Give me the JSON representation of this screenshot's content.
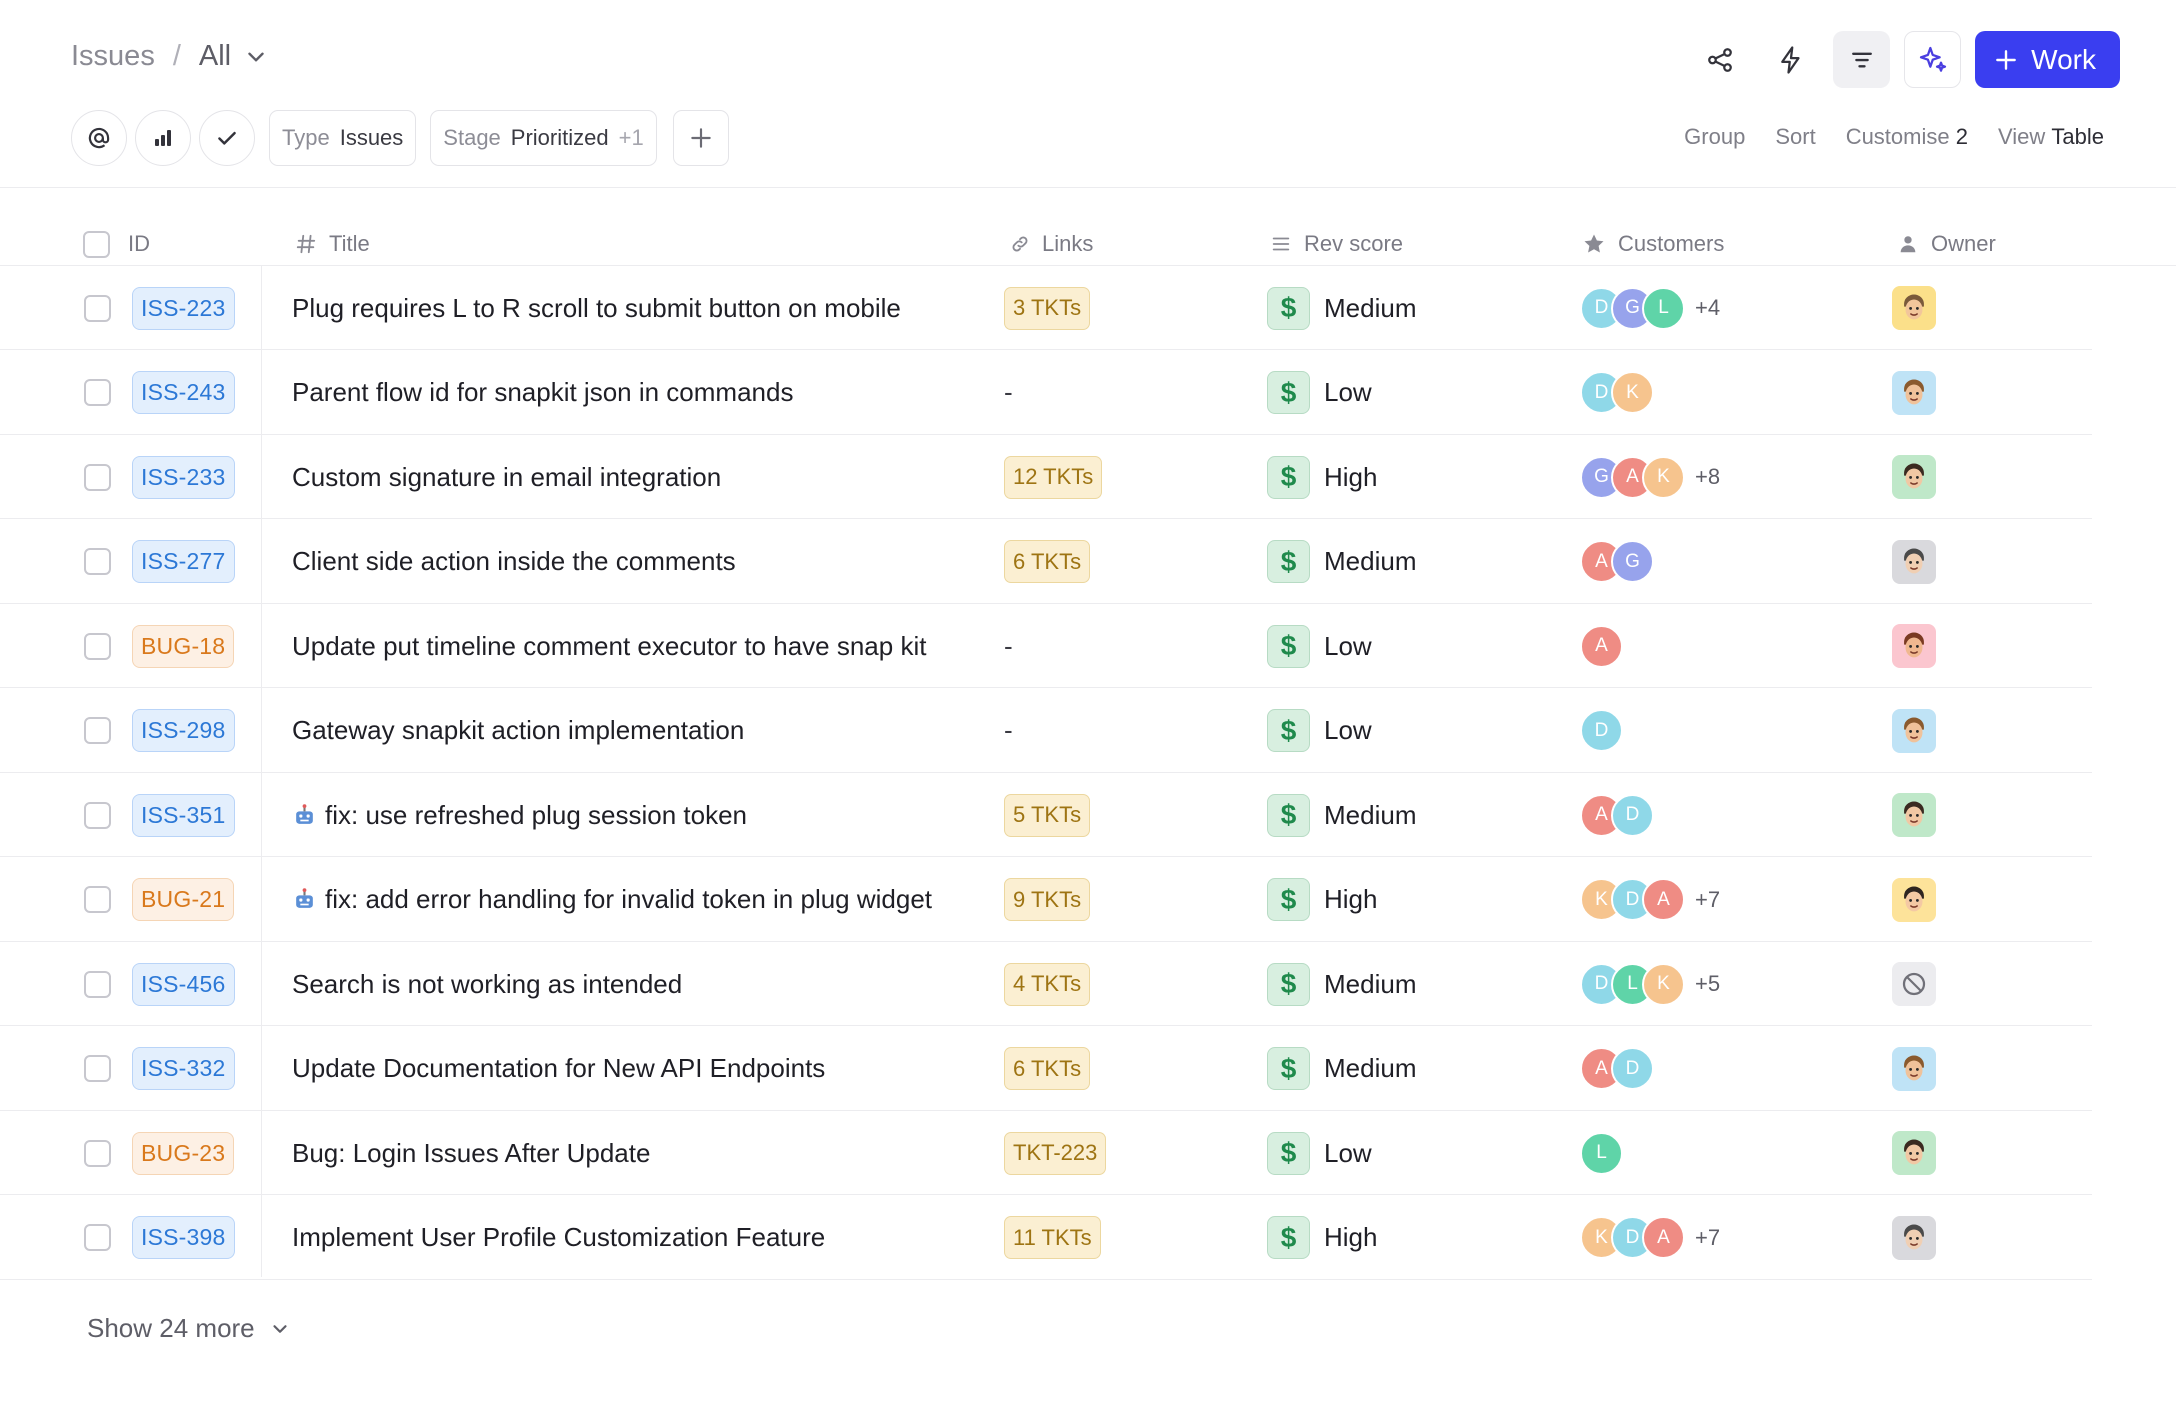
{
  "breadcrumb": {
    "root": "Issues",
    "separator": "/",
    "current": "All"
  },
  "toolbar": {
    "primary_label": "Work",
    "plus": "+"
  },
  "filters": {
    "type_key": "Type",
    "type_value": "Issues",
    "stage_key": "Stage",
    "stage_value": "Prioritized",
    "stage_extra": "+1"
  },
  "view_options": {
    "group": "Group",
    "sort": "Sort",
    "customise": "Customise",
    "customise_count": "2",
    "view": "View",
    "view_value": "Table"
  },
  "columns": {
    "id": "ID",
    "title": "Title",
    "links": "Links",
    "rev_score": "Rev score",
    "customers": "Customers",
    "owner": "Owner"
  },
  "rows": [
    {
      "id": "ISS-223",
      "kind": "iss",
      "title": "Plug requires L to R scroll to submit button on mobile",
      "title_icon": "",
      "links": "3 TKTs",
      "score": "Medium",
      "customers": [
        "D",
        "G",
        "L"
      ],
      "more": "+4",
      "owner": "avatar-hat"
    },
    {
      "id": "ISS-243",
      "kind": "iss",
      "title": "Parent flow id for snapkit json in commands",
      "title_icon": "",
      "links": "-",
      "score": "Low",
      "customers": [
        "D",
        "K"
      ],
      "more": "",
      "owner": "avatar-woman"
    },
    {
      "id": "ISS-233",
      "kind": "iss",
      "title": "Custom signature in email integration",
      "title_icon": "",
      "links": "12 TKTs",
      "score": "High",
      "customers": [
        "G",
        "A",
        "K"
      ],
      "more": "+8",
      "owner": "avatar-glasses"
    },
    {
      "id": "ISS-277",
      "kind": "iss",
      "title": "Client side action inside the comments",
      "title_icon": "",
      "links": "6 TKTs",
      "score": "Medium",
      "customers": [
        "A",
        "G"
      ],
      "more": "",
      "owner": "avatar-gray"
    },
    {
      "id": "BUG-18",
      "kind": "bug",
      "title": "Update put timeline comment executor to have snap kit",
      "title_icon": "",
      "links": "-",
      "score": "Low",
      "customers": [
        "A"
      ],
      "more": "",
      "owner": "avatar-pink"
    },
    {
      "id": "ISS-298",
      "kind": "iss",
      "title": "Gateway snapkit action implementation",
      "title_icon": "",
      "links": "-",
      "score": "Low",
      "customers": [
        "D"
      ],
      "more": "",
      "owner": "avatar-woman"
    },
    {
      "id": "ISS-351",
      "kind": "iss",
      "title": "fix: use refreshed plug session token",
      "title_icon": "robot-icon",
      "links": "5 TKTs",
      "score": "Medium",
      "customers": [
        "A",
        "D"
      ],
      "more": "",
      "owner": "avatar-glasses"
    },
    {
      "id": "BUG-21",
      "kind": "bug",
      "title": "fix: add error handling for invalid token in plug widget",
      "title_icon": "robot-icon",
      "links": "9 TKTs",
      "score": "High",
      "customers": [
        "K",
        "D",
        "A"
      ],
      "more": "+7",
      "owner": "avatar-yellow"
    },
    {
      "id": "ISS-456",
      "kind": "iss",
      "title": "Search is not working as intended",
      "title_icon": "",
      "links": "4 TKTs",
      "score": "Medium",
      "customers": [
        "D",
        "L",
        "K"
      ],
      "more": "+5",
      "owner": "unassigned"
    },
    {
      "id": "ISS-332",
      "kind": "iss",
      "title": "Update Documentation for New API Endpoints",
      "title_icon": "",
      "links": "6 TKTs",
      "score": "Medium",
      "customers": [
        "A",
        "D"
      ],
      "more": "",
      "owner": "avatar-woman"
    },
    {
      "id": "BUG-23",
      "kind": "bug",
      "title": "Bug: Login Issues After Update",
      "title_icon": "",
      "links": "TKT-223",
      "score": "Low",
      "customers": [
        "L"
      ],
      "more": "",
      "owner": "avatar-glasses"
    },
    {
      "id": "ISS-398",
      "kind": "iss",
      "title": "Implement User Profile Customization Feature",
      "title_icon": "",
      "links": "11 TKTs",
      "score": "High",
      "customers": [
        "K",
        "D",
        "A"
      ],
      "more": "+7",
      "owner": "avatar-gray"
    }
  ],
  "customer_colors": {
    "A": "#ef8c84",
    "D": "#8fd8e8",
    "G": "#97a3ec",
    "K": "#f6c48e",
    "L": "#5fd4a8"
  },
  "accent_color": "#3a3ef0",
  "show_more": "Show 24 more"
}
